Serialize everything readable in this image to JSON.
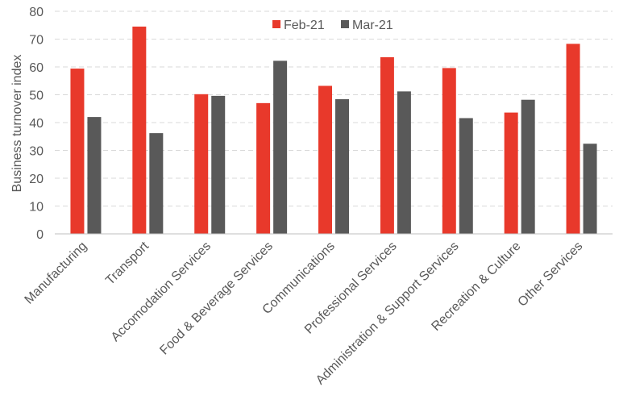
{
  "chart_data": {
    "type": "bar",
    "ylabel": "Business turnover index",
    "ylim": [
      0,
      80
    ],
    "yticks": [
      0,
      10,
      20,
      30,
      40,
      50,
      60,
      70,
      80
    ],
    "grid": true,
    "legend_position": "top-center",
    "categories": [
      "Manufacturing",
      "Transport",
      "Accomodation Services",
      "Food & Beverage Services",
      "Communications",
      "Professional Services",
      "Administration & Support Services",
      "Recreation & Culture",
      "Other Services"
    ],
    "series": [
      {
        "name": "Feb-21",
        "color": "#e8392b",
        "values": [
          59.4,
          74.5,
          50.2,
          47.0,
          53.2,
          63.5,
          59.6,
          43.6,
          68.3
        ]
      },
      {
        "name": "Mar-21",
        "color": "#595959",
        "values": [
          42.0,
          36.2,
          49.6,
          62.2,
          48.4,
          51.2,
          41.6,
          48.2,
          32.4
        ]
      }
    ]
  }
}
